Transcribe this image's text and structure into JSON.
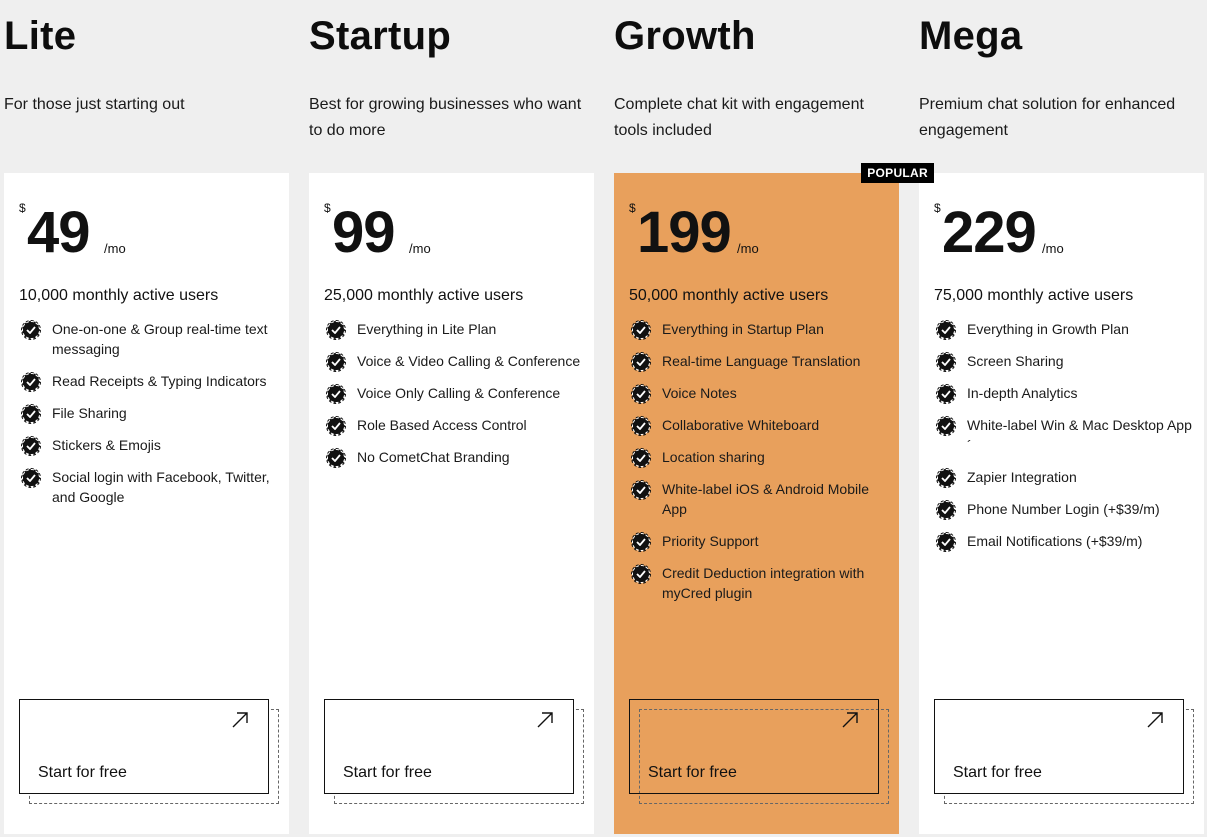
{
  "plans": [
    {
      "name": "Lite",
      "description": "For those just starting out",
      "currency": "$",
      "price": "49",
      "period": "/mo",
      "users": "10,000 monthly active users",
      "popular": false,
      "features": [
        "One-on-one & Group real-time text messaging",
        "Read Receipts & Typing Indicators",
        "File Sharing",
        "Stickers & Emojis",
        "Social login with Facebook, Twitter, and Google"
      ],
      "cta": "Start for free"
    },
    {
      "name": "Startup",
      "description": "Best for growing businesses who want to do more",
      "currency": "$",
      "price": "99",
      "period": "/mo",
      "users": "25,000 monthly active users",
      "popular": false,
      "features": [
        "Everything in Lite Plan",
        "Voice & Video Calling & Conference",
        "Voice Only Calling & Conference",
        "Role Based Access Control",
        "No CometChat Branding"
      ],
      "cta": "Start for free"
    },
    {
      "name": "Growth",
      "description": "Complete chat kit with engagement tools included",
      "currency": "$",
      "price": "199",
      "period": "/mo",
      "users": "50,000 monthly active users",
      "popular": true,
      "badge": "POPULAR",
      "features": [
        "Everything in Startup Plan",
        "Real-time Language Translation",
        "Voice Notes",
        "Collaborative Whiteboard",
        "Location sharing",
        "White-label iOS & Android Mobile App",
        "Priority Support",
        "Credit Deduction integration with myCred plugin"
      ],
      "cta": "Start for free"
    },
    {
      "name": "Mega",
      "description": "Premium chat solution for enhanced engagement",
      "currency": "$",
      "price": "229",
      "period": "/mo",
      "users": "75,000 monthly active users",
      "popular": false,
      "features": [
        "Everything in Growth Plan",
        "Screen Sharing",
        "In-depth Analytics",
        "White-label Win & Mac Desktop App´",
        "Zapier Integration",
        "Phone Number Login (+$39/m)",
        "Email Notifications (+$39/m)"
      ],
      "cta": "Start for free"
    }
  ],
  "colors": {
    "page_bg": "#efefef",
    "card_bg": "#ffffff",
    "popular_card_bg": "#e8a05c",
    "badge_bg": "#000000",
    "text": "#111111"
  },
  "icons": {
    "feature_check": "check-circle-icon",
    "cta_arrow": "arrow-up-right-icon"
  }
}
